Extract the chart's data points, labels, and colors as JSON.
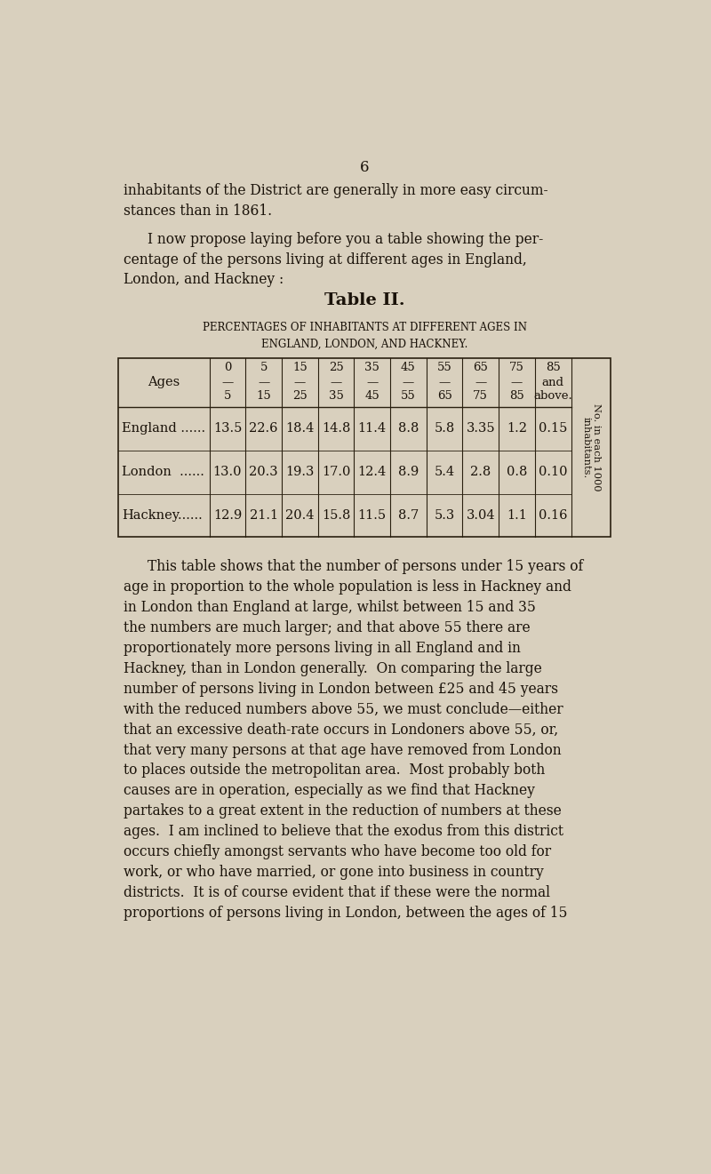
{
  "page_number": "6",
  "bg_color": "#d9d0be",
  "text_color": "#1a1209",
  "page_width": 8.0,
  "page_height": 13.21,
  "dpi": 100,
  "table_title": "Table II.",
  "table_subtitle1": "Percentages of Inhabitants at different Ages in",
  "table_subtitle2": "England, London, and Hackney.",
  "table_header_top": [
    "0",
    "5",
    "15",
    "25",
    "35",
    "45",
    "55",
    "65",
    "75",
    "85"
  ],
  "table_header_mid": [
    "—",
    "—",
    "—",
    "—",
    "—",
    "—",
    "—",
    "—",
    "—",
    "and"
  ],
  "table_header_bot": [
    "5",
    "15",
    "25",
    "35",
    "45",
    "55",
    "65",
    "75",
    "85",
    "above."
  ],
  "table_last_col_label": "No. in each 1000 inhabitants.",
  "table_rows": [
    {
      "label": "England ......",
      "values": [
        "13.5",
        "22.6",
        "18.4",
        "14.8",
        "11.4",
        "8.8",
        "5.8",
        "3.35",
        "1.2",
        "0.15"
      ]
    },
    {
      "label": "London  ......",
      "values": [
        "13.0",
        "20.3",
        "19.3",
        "17.0",
        "12.4",
        "8.9",
        "5.4",
        "2.8",
        "0.8",
        "0.10"
      ]
    },
    {
      "label": "Hackney......",
      "values": [
        "12.9",
        "21.1",
        "20.4",
        "15.8",
        "11.5",
        "8.7",
        "5.3",
        "3.04",
        "1.1",
        "0.16"
      ]
    }
  ],
  "line1": "inhabitants of the District are generally in more easy circum-",
  "line2": "stances than in 1861.",
  "line3": "I now propose laying before you a table showing the per-",
  "line4": "centage of the persons living at different ages in England,",
  "line5": "London, and Hackney :",
  "para3_indent": "This table shows that the number of persons under 15 years of",
  "para3_lines": [
    "age in proportion to the whole population is less in Hackney and",
    "in London than England at large, whilst between 15 and 35",
    "the numbers are much larger; and that above 55 there are",
    "proportionately more persons living in all England and in",
    "Hackney, than in London generally.  On comparing the large",
    "number of persons living in London between £25 and 45 years",
    "with the reduced numbers above 55, we must conclude—either",
    "that an excessive death-rate occurs in Londoners above 55, or,",
    "that very many persons at that age have removed from London",
    "to places outside the metropolitan area.  Most probably both",
    "causes are in operation, especially as we find that Hackney",
    "partakes to a great extent in the reduction of numbers at these",
    "ages.  I am inclined to believe that the exodus from this district",
    "occurs chiefly amongst servants who have become too old for",
    "work, or who have married, or gone into business in country",
    "districts.  It is of course evident that if these were the normal",
    "proportions of persons living in London, between the ages of 15"
  ]
}
